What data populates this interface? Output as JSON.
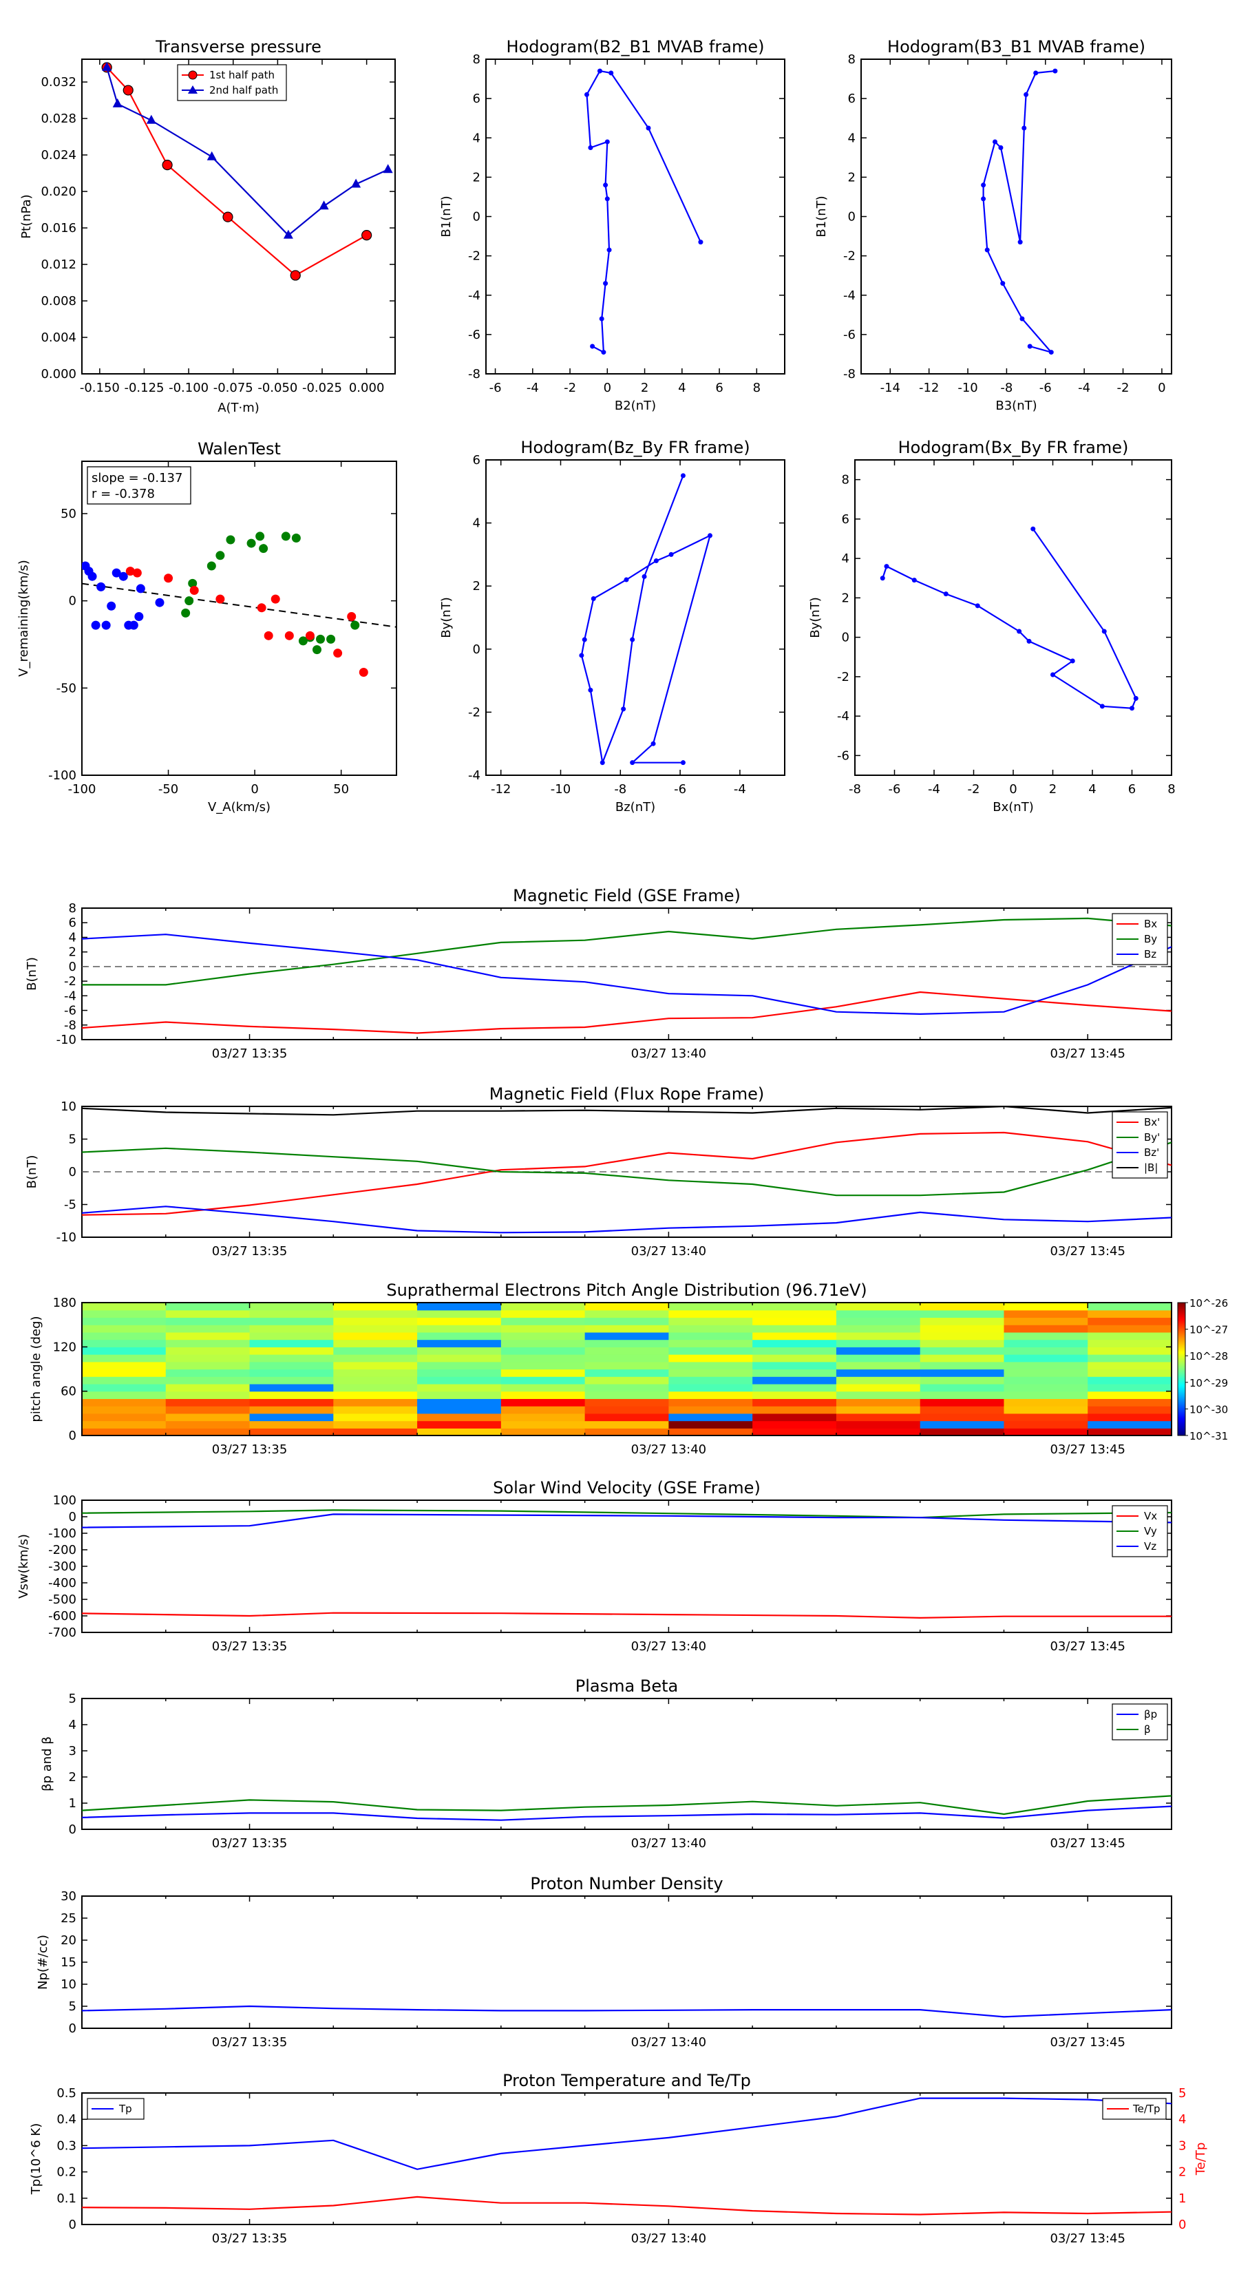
{
  "figure": {
    "domain": "space-physics flux rope analysis"
  },
  "time_axis": {
    "tick_labels": [
      "03/27 13:35",
      "03/27 13:40",
      "03/27 13:45"
    ],
    "tick_minutes": [
      35,
      40,
      45
    ],
    "xlim": [
      33,
      46
    ]
  },
  "chart_data": [
    {
      "id": "transverse_pressure",
      "type": "line",
      "title": "Transverse pressure",
      "xlabel": "A(T·m)",
      "ylabel": "Pt(nPa)",
      "xlim": [
        -0.16,
        0.016
      ],
      "ylim": [
        0,
        0.0345
      ],
      "xticks": [
        -0.15,
        -0.125,
        -0.1,
        -0.075,
        -0.05,
        -0.025,
        0.0
      ],
      "xtick_labels": [
        "-0.150",
        "-0.125",
        "-0.100",
        "-0.075",
        "-0.050",
        "-0.025",
        "0.000"
      ],
      "yticks": [
        0,
        0.004,
        0.008,
        0.012,
        0.016,
        0.02,
        0.024,
        0.028,
        0.032
      ],
      "ytick_labels": [
        "0.000",
        "0.004",
        "0.008",
        "0.012",
        "0.016",
        "0.020",
        "0.024",
        "0.028",
        "0.032"
      ],
      "legend_position": "top-right",
      "series": [
        {
          "name": "1st half path",
          "color": "#ff0000",
          "marker": "circle",
          "x": [
            -0.146,
            -0.134,
            -0.112,
            -0.078,
            -0.04,
            0.0
          ],
          "y": [
            0.0336,
            0.0311,
            0.0229,
            0.0172,
            0.0108,
            0.0152
          ]
        },
        {
          "name": "2nd half path",
          "color": "#0000cc",
          "marker": "triangle",
          "x": [
            -0.146,
            -0.14,
            -0.121,
            -0.087,
            -0.044,
            -0.024,
            -0.006,
            0.012
          ],
          "y": [
            0.0336,
            0.0296,
            0.0278,
            0.0238,
            0.0152,
            0.0184,
            0.0208,
            0.0224
          ]
        }
      ]
    },
    {
      "id": "hodogram_b2_b1",
      "type": "line",
      "title": "Hodogram(B2_B1 MVAB frame)",
      "xlabel": "B2(nT)",
      "ylabel": "B1(nT)",
      "xlim": [
        -6.5,
        9.5
      ],
      "ylim": [
        -8,
        8
      ],
      "xticks": [
        -6,
        -4,
        -2,
        0,
        2,
        4,
        6,
        8
      ],
      "yticks": [
        -8,
        -6,
        -4,
        -2,
        0,
        2,
        4,
        6,
        8
      ],
      "series": [
        {
          "name": "B2_B1",
          "color": "#0000ff",
          "x": [
            -0.8,
            -0.2,
            -0.3,
            -0.1,
            0.1,
            0.0,
            -0.1,
            0.0,
            -0.9,
            -1.1,
            -0.4,
            0.2,
            2.2,
            5.0
          ],
          "y": [
            -6.6,
            -6.9,
            -5.2,
            -3.4,
            -1.7,
            0.9,
            1.6,
            3.8,
            3.5,
            6.2,
            7.4,
            7.3,
            4.5,
            -1.3
          ]
        }
      ]
    },
    {
      "id": "hodogram_b3_b1",
      "type": "line",
      "title": "Hodogram(B3_B1 MVAB frame)",
      "xlabel": "B3(nT)",
      "ylabel": "B1(nT)",
      "xlim": [
        -15.5,
        0.5
      ],
      "ylim": [
        -8,
        8
      ],
      "xticks": [
        -14,
        -12,
        -10,
        -8,
        -6,
        -4,
        -2,
        0
      ],
      "yticks": [
        -8,
        -6,
        -4,
        -2,
        0,
        2,
        4,
        6,
        8
      ],
      "series": [
        {
          "name": "B3_B1",
          "color": "#0000ff",
          "x": [
            -6.8,
            -5.7,
            -7.2,
            -8.2,
            -9.0,
            -9.2,
            -9.2,
            -8.6,
            -8.3,
            -7.3,
            -7.1,
            -7.0,
            -6.5,
            -5.5
          ],
          "y": [
            -6.6,
            -6.9,
            -5.2,
            -3.4,
            -1.7,
            0.9,
            1.6,
            3.8,
            3.5,
            -1.3,
            4.5,
            6.2,
            7.3,
            7.4
          ]
        }
      ]
    },
    {
      "id": "walen_test",
      "type": "scatter",
      "title": "WalenTest",
      "xlabel": "V_A(km/s)",
      "ylabel": "V_remaining(km/s)",
      "xlim": [
        -100,
        82
      ],
      "ylim": [
        -100,
        80
      ],
      "xticks": [
        -100,
        -50,
        0,
        50
      ],
      "yticks": [
        -100,
        -50,
        0,
        50
      ],
      "annotation": [
        "slope = -0.137",
        "r = -0.378"
      ],
      "fit_line": {
        "slope": -0.137,
        "intercept": -3.8,
        "color": "#000000",
        "style": "dashed"
      },
      "series": [
        {
          "name": "first third",
          "color": "#0000ff",
          "x": [
            -98,
            -96,
            -94,
            -92,
            -89,
            -86,
            -83,
            -80,
            -76,
            -73,
            -70,
            -67,
            -66,
            -55
          ],
          "y": [
            20,
            17,
            14,
            -14,
            8,
            -14,
            -3,
            16,
            14,
            -14,
            -14,
            -9,
            7,
            -1
          ]
        },
        {
          "name": "second third",
          "color": "#008000",
          "x": [
            -40,
            -38,
            -36,
            -25,
            -20,
            -14,
            -2,
            3,
            5,
            18,
            24,
            28,
            32,
            36,
            38,
            44,
            58
          ],
          "y": [
            -7,
            0,
            10,
            20,
            26,
            35,
            33,
            37,
            30,
            37,
            36,
            -23,
            -21,
            -28,
            -22,
            -22,
            -14
          ]
        },
        {
          "name": "last third",
          "color": "#ff0000",
          "x": [
            -72,
            -68,
            -50,
            -35,
            -20,
            4,
            8,
            12,
            20,
            32,
            48,
            56,
            63
          ],
          "y": [
            17,
            16,
            13,
            6,
            1,
            -4,
            -20,
            1,
            -20,
            -20,
            -30,
            -9,
            -41
          ]
        }
      ]
    },
    {
      "id": "hodogram_bz_by",
      "type": "line",
      "title": "Hodogram(Bz_By FR frame)",
      "xlabel": "Bz(nT)",
      "ylabel": "By(nT)",
      "xlim": [
        -12.5,
        -2.5
      ],
      "ylim": [
        -4,
        6
      ],
      "xticks": [
        -12,
        -10,
        -8,
        -6,
        -4
      ],
      "yticks": [
        -4,
        -2,
        0,
        2,
        4,
        6
      ],
      "series": [
        {
          "name": "Bz_By",
          "color": "#0000ff",
          "x": [
            -5.9,
            -7.2,
            -7.6,
            -7.9,
            -8.6,
            -9.0,
            -9.3,
            -9.2,
            -8.9,
            -7.8,
            -6.8,
            -6.3,
            -5.0,
            -6.9,
            -7.6,
            -5.9
          ],
          "y": [
            5.5,
            2.3,
            0.3,
            -1.9,
            -3.6,
            -1.3,
            -0.2,
            0.3,
            1.6,
            2.2,
            2.8,
            3.0,
            3.6,
            -3.0,
            -3.6,
            -3.6
          ]
        }
      ]
    },
    {
      "id": "hodogram_bx_by",
      "type": "line",
      "title": "Hodogram(Bx_By FR frame)",
      "xlabel": "Bx(nT)",
      "ylabel": "By(nT)",
      "xlim": [
        -8,
        8
      ],
      "ylim": [
        -7,
        9
      ],
      "xticks": [
        -8,
        -6,
        -4,
        -2,
        0,
        2,
        4,
        6,
        8
      ],
      "yticks": [
        -6,
        -4,
        -2,
        0,
        2,
        4,
        6,
        8
      ],
      "series": [
        {
          "name": "Bx_By",
          "color": "#0000ff",
          "x": [
            1.0,
            4.6,
            6.2,
            6.0,
            4.5,
            2.0,
            3.0,
            0.8,
            0.3,
            -1.8,
            -3.4,
            -5.0,
            -6.4,
            -6.6
          ],
          "y": [
            5.5,
            0.3,
            -3.1,
            -3.6,
            -3.5,
            -1.9,
            -1.2,
            -0.2,
            0.3,
            1.6,
            2.2,
            2.9,
            3.6,
            3.0
          ]
        }
      ]
    },
    {
      "id": "magnetic_field_gse",
      "type": "line",
      "title": "Magnetic Field (GSE Frame)",
      "ylabel": "B(nT)",
      "ylim": [
        -10,
        8
      ],
      "yticks": [
        -10,
        -8,
        -6,
        -4,
        -2,
        0,
        2,
        4,
        6,
        8
      ],
      "zero_line": true,
      "legend_position": "top-right",
      "x": [
        33,
        34,
        35,
        36,
        37,
        38,
        39,
        40,
        41,
        42,
        43,
        44,
        45,
        46
      ],
      "series": [
        {
          "name": "Bx",
          "color": "#ff0000",
          "values": [
            -8.4,
            -7.6,
            -8.2,
            -8.6,
            -9.1,
            -8.5,
            -8.3,
            -7.1,
            -7.0,
            -5.5,
            -3.5,
            -4.4,
            -5.3,
            -6.1
          ]
        },
        {
          "name": "By",
          "color": "#008000",
          "values": [
            -2.5,
            -2.5,
            -1.0,
            0.3,
            1.8,
            3.3,
            3.6,
            4.8,
            3.8,
            5.1,
            5.7,
            6.4,
            6.6,
            5.6
          ]
        },
        {
          "name": "Bz",
          "color": "#0000ff",
          "values": [
            3.8,
            4.4,
            3.2,
            2.1,
            0.9,
            -1.5,
            -2.1,
            -3.7,
            -4.0,
            -6.2,
            -6.5,
            -6.2,
            -2.5,
            2.7
          ]
        }
      ]
    },
    {
      "id": "magnetic_field_fr",
      "type": "line",
      "title": "Magnetic Field (Flux Rope Frame)",
      "ylabel": "B(nT)",
      "ylim": [
        -10,
        10
      ],
      "yticks": [
        -10,
        -5,
        0,
        5,
        10
      ],
      "zero_line": true,
      "legend_position": "top-right",
      "x": [
        33,
        34,
        35,
        36,
        37,
        38,
        39,
        40,
        41,
        42,
        43,
        44,
        45,
        46
      ],
      "series": [
        {
          "name": "Bx'",
          "color": "#ff0000",
          "values": [
            -6.6,
            -6.4,
            -5.1,
            -3.5,
            -1.9,
            0.3,
            0.8,
            2.9,
            2.0,
            4.5,
            5.8,
            6.0,
            4.6,
            1.0
          ]
        },
        {
          "name": "By'",
          "color": "#008000",
          "values": [
            3.0,
            3.6,
            3.0,
            2.3,
            1.6,
            0.0,
            -0.2,
            -1.3,
            -1.9,
            -3.6,
            -3.6,
            -3.1,
            0.3,
            4.5
          ]
        },
        {
          "name": "Bz'",
          "color": "#0000ff",
          "values": [
            -6.3,
            -5.3,
            -6.4,
            -7.6,
            -9.0,
            -9.3,
            -9.2,
            -8.6,
            -8.3,
            -7.8,
            -6.2,
            -7.3,
            -7.6,
            -7.0
          ]
        },
        {
          "name": "|B|",
          "color": "#000000",
          "values": [
            9.7,
            9.1,
            8.9,
            8.7,
            9.3,
            9.3,
            9.4,
            9.2,
            9.0,
            9.7,
            9.5,
            10.0,
            9.0,
            9.8
          ]
        }
      ]
    },
    {
      "id": "pitch_angle",
      "type": "heatmap",
      "title": "Suprathermal Electrons Pitch Angle Distribution (96.71eV)",
      "ylabel": "pitch angle (deg)",
      "ylim": [
        0,
        180
      ],
      "yticks": [
        0,
        60,
        120,
        180
      ],
      "time_bins": 13,
      "angle_bins": 18,
      "colorbar": {
        "tick_labels": [
          "10^-26",
          "10^-27",
          "10^-28",
          "10^-29",
          "10^-30",
          "10^-31"
        ],
        "log_min": -31,
        "log_max": -26
      },
      "colormap": [
        "#00007f",
        "#0000ff",
        "#007fff",
        "#00ffff",
        "#7fff7f",
        "#ffff00",
        "#ff7f00",
        "#ff0000",
        "#7f0000"
      ]
    },
    {
      "id": "solar_wind_velocity",
      "type": "line",
      "title": "Solar Wind Velocity (GSE Frame)",
      "ylabel": "Vsw(km/s)",
      "ylim": [
        -700,
        100
      ],
      "yticks": [
        -700,
        -600,
        -500,
        -400,
        -300,
        -200,
        -100,
        0,
        100
      ],
      "legend_position": "top-right",
      "x": [
        33,
        35,
        36,
        38,
        40,
        42,
        43,
        44,
        46
      ],
      "series": [
        {
          "name": "Vx",
          "color": "#ff0000",
          "values": [
            -585,
            -600,
            -582,
            -584,
            -592,
            -600,
            -612,
            -603,
            -603
          ]
        },
        {
          "name": "Vy",
          "color": "#008000",
          "values": [
            22,
            32,
            40,
            35,
            20,
            5,
            -5,
            15,
            25
          ]
        },
        {
          "name": "Vz",
          "color": "#0000ff",
          "values": [
            -65,
            -55,
            15,
            10,
            5,
            -5,
            -5,
            -20,
            -35
          ]
        }
      ]
    },
    {
      "id": "plasma_beta",
      "type": "line",
      "title": "Plasma Beta",
      "ylabel": "βp and β",
      "ylim": [
        0,
        5
      ],
      "yticks": [
        0,
        1,
        2,
        3,
        4,
        5
      ],
      "legend_position": "top-right",
      "x": [
        33,
        34,
        35,
        36,
        37,
        38,
        39,
        40,
        41,
        42,
        43,
        44,
        45,
        46
      ],
      "series": [
        {
          "name": "βp",
          "color": "#0000ff",
          "values": [
            0.45,
            0.55,
            0.62,
            0.62,
            0.42,
            0.35,
            0.48,
            0.52,
            0.58,
            0.56,
            0.62,
            0.43,
            0.72,
            0.88
          ]
        },
        {
          "name": "β",
          "color": "#008000",
          "values": [
            0.72,
            0.92,
            1.12,
            1.05,
            0.75,
            0.72,
            0.85,
            0.92,
            1.06,
            0.9,
            1.02,
            0.58,
            1.08,
            1.28
          ]
        }
      ]
    },
    {
      "id": "proton_density",
      "type": "line",
      "title": "Proton Number Density",
      "ylabel": "Np(#/cc)",
      "ylim": [
        0,
        30
      ],
      "yticks": [
        0,
        5,
        10,
        15,
        20,
        25,
        30
      ],
      "x": [
        33,
        34,
        35,
        36,
        37,
        38,
        39,
        40,
        41,
        42,
        43,
        44,
        45,
        46
      ],
      "series": [
        {
          "name": "Np",
          "color": "#0000ff",
          "values": [
            4.0,
            4.4,
            5.0,
            4.5,
            4.2,
            4.0,
            4.0,
            4.1,
            4.2,
            4.2,
            4.2,
            2.6,
            3.4,
            4.2
          ]
        }
      ]
    },
    {
      "id": "proton_temperature",
      "type": "line",
      "title": "Proton Temperature and Te/Tp",
      "ylabel": "Tp(10^6 K)",
      "ylabel_right": "Te/Tp",
      "ylim": [
        0,
        0.5
      ],
      "yticks": [
        0,
        0.1,
        0.2,
        0.3,
        0.4,
        0.5
      ],
      "yticks_right": [
        0,
        1,
        2,
        3,
        4,
        5
      ],
      "legend_left": "Tp",
      "legend_right": "Te/Tp",
      "x": [
        33,
        34,
        35,
        36,
        37,
        38,
        39,
        40,
        41,
        42,
        43,
        44,
        45,
        46
      ],
      "series": [
        {
          "name": "Tp",
          "color": "#0000ff",
          "axis": "left",
          "values": [
            0.29,
            0.295,
            0.3,
            0.32,
            0.21,
            0.27,
            0.3,
            0.33,
            0.37,
            0.41,
            0.48,
            0.48,
            0.475,
            0.46
          ]
        },
        {
          "name": "Te/Tp",
          "color": "#ff0000",
          "axis": "right",
          "values": [
            0.65,
            0.63,
            0.58,
            0.72,
            1.05,
            0.82,
            0.82,
            0.7,
            0.52,
            0.42,
            0.38,
            0.46,
            0.42,
            0.48
          ]
        }
      ]
    }
  ]
}
